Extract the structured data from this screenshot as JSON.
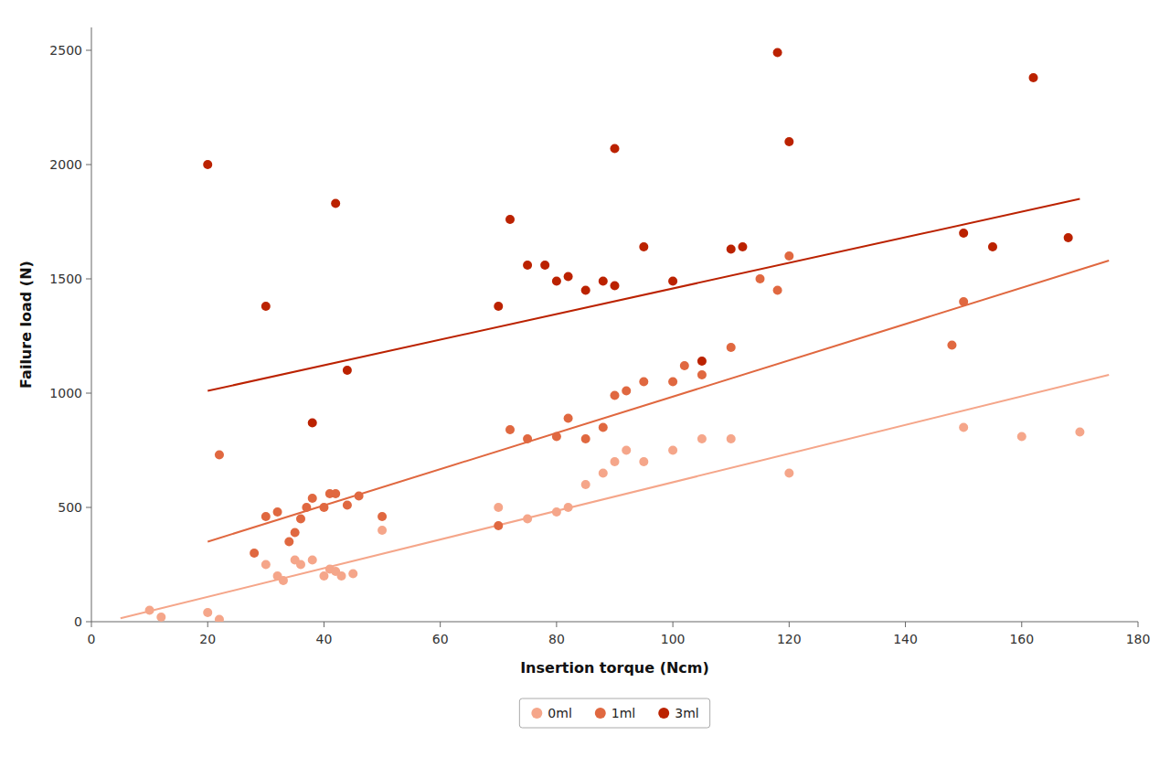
{
  "chart_data": {
    "type": "scatter",
    "xlabel": "Insertion torque (Ncm)",
    "ylabel": "Failure load (N)",
    "xlim": [
      0,
      180
    ],
    "ylim": [
      0,
      2600
    ],
    "xticks": [
      0,
      20,
      40,
      60,
      80,
      100,
      120,
      140,
      160,
      180
    ],
    "yticks": [
      0,
      500,
      1000,
      1500,
      2000,
      2500
    ],
    "grid": false,
    "legend": "bottom",
    "series": [
      {
        "name": "0ml",
        "type": "scatter",
        "color": "#F5A68A",
        "x": [
          10,
          12,
          20,
          22,
          30,
          32,
          33,
          35,
          36,
          38,
          40,
          41,
          42,
          43,
          45,
          50,
          70,
          75,
          80,
          82,
          85,
          88,
          90,
          92,
          95,
          100,
          105,
          110,
          120,
          150,
          160,
          170
        ],
        "values": [
          50,
          20,
          40,
          10,
          250,
          200,
          180,
          270,
          250,
          270,
          200,
          230,
          220,
          200,
          210,
          400,
          500,
          450,
          480,
          500,
          600,
          650,
          700,
          750,
          700,
          750,
          800,
          800,
          650,
          850,
          810,
          830
        ]
      },
      {
        "name": "1ml",
        "type": "scatter",
        "color": "#E06840",
        "x": [
          22,
          28,
          30,
          32,
          34,
          35,
          36,
          37,
          38,
          40,
          41,
          42,
          44,
          46,
          50,
          70,
          72,
          75,
          80,
          82,
          85,
          88,
          90,
          92,
          95,
          100,
          102,
          105,
          110,
          115,
          118,
          120,
          148,
          150
        ],
        "values": [
          730,
          300,
          460,
          480,
          350,
          390,
          450,
          500,
          540,
          500,
          560,
          560,
          510,
          550,
          460,
          420,
          840,
          800,
          810,
          890,
          800,
          850,
          990,
          1010,
          1050,
          1050,
          1120,
          1080,
          1200,
          1500,
          1450,
          1600,
          1210,
          1400
        ]
      },
      {
        "name": "3ml",
        "type": "scatter",
        "color": "#BB2200",
        "x": [
          20,
          30,
          38,
          42,
          44,
          70,
          72,
          75,
          78,
          80,
          82,
          85,
          88,
          90,
          90,
          95,
          100,
          105,
          110,
          112,
          118,
          120,
          150,
          155,
          162,
          168
        ],
        "values": [
          2000,
          1380,
          870,
          1830,
          1100,
          1380,
          1760,
          1560,
          1560,
          1490,
          1510,
          1450,
          1490,
          1470,
          2070,
          1640,
          1490,
          1140,
          1630,
          1640,
          2490,
          2100,
          1700,
          1640,
          2380,
          1680
        ]
      },
      {
        "type": "line",
        "color": "#F5A68A",
        "x": [
          5,
          175
        ],
        "values": [
          15,
          1080
        ]
      },
      {
        "type": "line",
        "color": "#E06840",
        "x": [
          20,
          175
        ],
        "values": [
          350,
          1580
        ]
      },
      {
        "type": "line",
        "color": "#BB2200",
        "x": [
          20,
          170
        ],
        "values": [
          1010,
          1850
        ]
      }
    ]
  }
}
